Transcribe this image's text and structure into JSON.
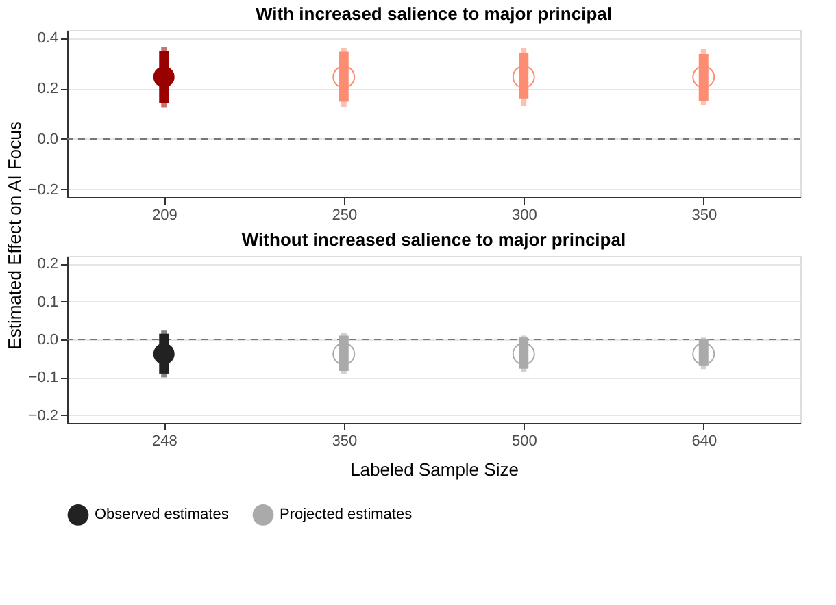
{
  "chart_data": [
    {
      "type": "scatter",
      "title": "With increased salience to major principal",
      "ylabel": "Estimated Effect on AI Focus",
      "categories": [
        "209",
        "250",
        "300",
        "350"
      ],
      "series": [
        {
          "color": "#990000",
          "marker": "circle",
          "values": [
            0.245,
            null,
            null,
            null
          ],
          "errors": [
            [
              0.123,
              0.365
            ],
            null,
            null,
            null
          ]
        },
        {
          "color": "#fc8d72",
          "marker": "circle",
          "values": [
            null,
            0.245,
            0.245,
            0.245
          ],
          "errors": [
            null,
            [
              0.125,
              0.36
            ],
            [
              0.13,
              0.36
            ],
            [
              0.135,
              0.355
            ]
          ]
        },
        {
          "type": "bar",
          "color": "#990000",
          "base": [
            0.143,
            null,
            null,
            null
          ],
          "values": [
            0.204,
            null,
            null,
            null
          ]
        },
        {
          "type": "bar",
          "color": "#fc8d72",
          "base": [
            null,
            0.147,
            0.16,
            0.15
          ],
          "values": [
            null,
            0.198,
            0.18,
            0.185
          ]
        }
      ],
      "ylim": [
        -0.23,
        0.43
      ],
      "yticks": [
        {
          "value": -0.2,
          "label": "−0.2"
        },
        {
          "value": 0,
          "label": "0.0"
        },
        0.2,
        0.4
      ],
      "grid": "y",
      "ref_lines": [
        {
          "axis": "y",
          "value": 0,
          "color": "#777777",
          "line_style": "dashed"
        }
      ]
    },
    {
      "type": "scatter",
      "title": "Without increased salience to major principal",
      "xlabel": "Labeled Sample Size",
      "categories": [
        "248",
        "350",
        "500",
        "640"
      ],
      "series": [
        {
          "name": "Observed estimates",
          "color": "#222222",
          "marker": "circle",
          "values": [
            -0.038,
            null,
            null,
            null
          ],
          "errors": [
            [
              -0.1,
              0.025
            ],
            null,
            null,
            null
          ]
        },
        {
          "name": "Projected estimates",
          "color": "#aaaaaa",
          "marker": "circle",
          "values": [
            null,
            -0.038,
            -0.038,
            -0.038
          ],
          "errors": [
            null,
            [
              -0.09,
              0.018
            ],
            [
              -0.085,
              0.01
            ],
            [
              -0.078,
              0.005
            ]
          ]
        },
        {
          "type": "bar",
          "color": "#222222",
          "base": [
            -0.09,
            null,
            null,
            null
          ],
          "values": [
            0.105,
            null,
            null,
            null
          ]
        },
        {
          "type": "bar",
          "color": "#aaaaaa",
          "base": [
            null,
            -0.083,
            -0.077,
            -0.07
          ],
          "values": [
            null,
            0.093,
            0.082,
            0.07
          ]
        }
      ],
      "ylim": [
        -0.22,
        0.22
      ],
      "yticks": [
        {
          "value": -0.2,
          "label": "−0.2"
        },
        {
          "value": -0.1,
          "label": "−0.1"
        },
        {
          "value": 0,
          "label": "0.0"
        },
        0.1,
        0.2
      ],
      "grid": "y",
      "legend": "bottom",
      "ref_lines": [
        {
          "axis": "y",
          "value": 0,
          "color": "#777777",
          "line_style": "dashed"
        }
      ]
    }
  ]
}
